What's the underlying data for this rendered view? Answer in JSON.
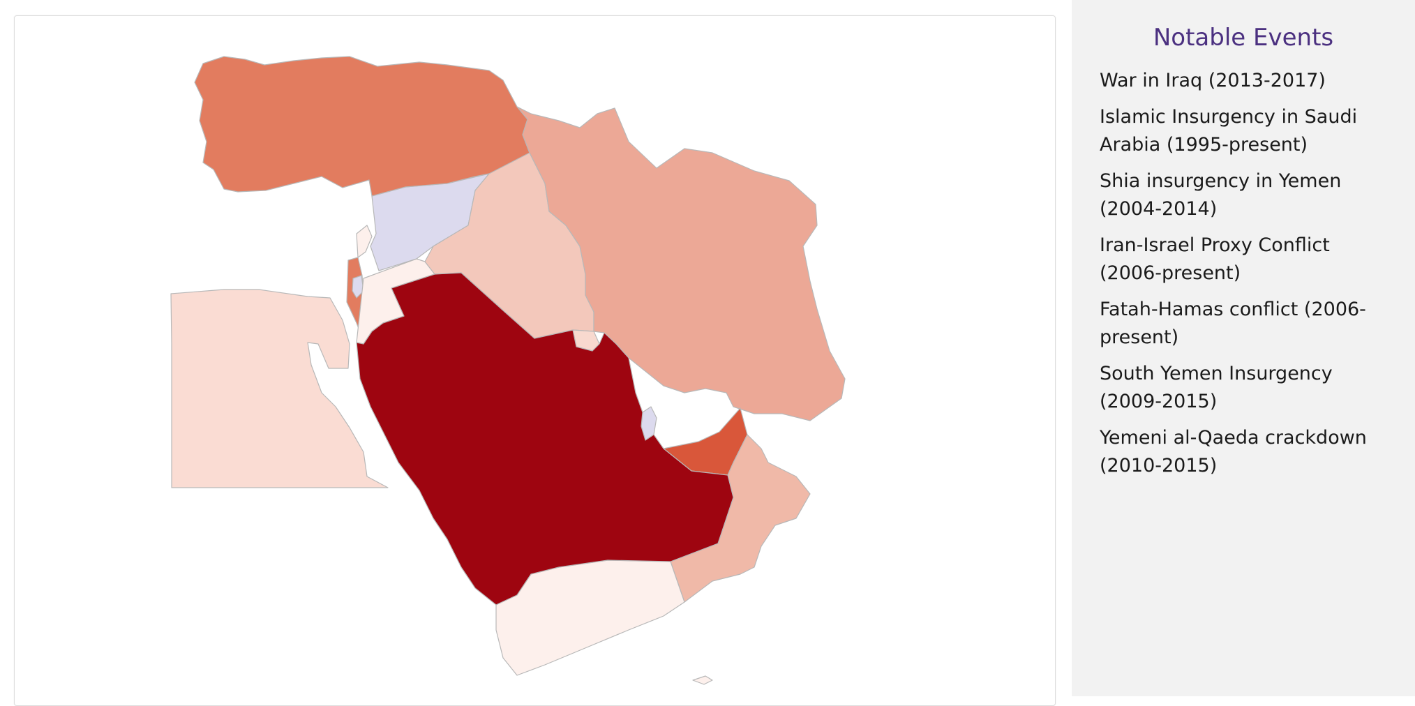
{
  "sidebar": {
    "title": "Notable Events",
    "events": [
      "War in Iraq (2013-2017)",
      "Islamic Insurgency in Saudi Arabia (1995-present)",
      "Shia insurgency in Yemen (2004-2014)",
      "Iran-Israel Proxy Conflict (2006-present)",
      "Fatah-Hamas conflict (2006-present)",
      "South Yemen Insurgency (2009-2015)",
      "Yemeni al-Qaeda crackdown (2010-2015)"
    ]
  },
  "map": {
    "colors": {
      "saudi_arabia": "#9e0510",
      "uae": "#d9573a",
      "turkey": "#e27c5f",
      "israel": "#e27c5f",
      "iran": "#eca896",
      "oman": "#f0b9a8",
      "iraq": "#f3c8bb",
      "egypt": "#fadcd3",
      "lebanon": "#fdf0ec",
      "jordan": "#fdf0ec",
      "yemen": "#fdf0ec",
      "kuwait": "#f8d9cf",
      "syria": "#dcdaee",
      "palestine": "#dcdaee",
      "qatar": "#dcdaee",
      "border": "#b8b8b8"
    }
  }
}
